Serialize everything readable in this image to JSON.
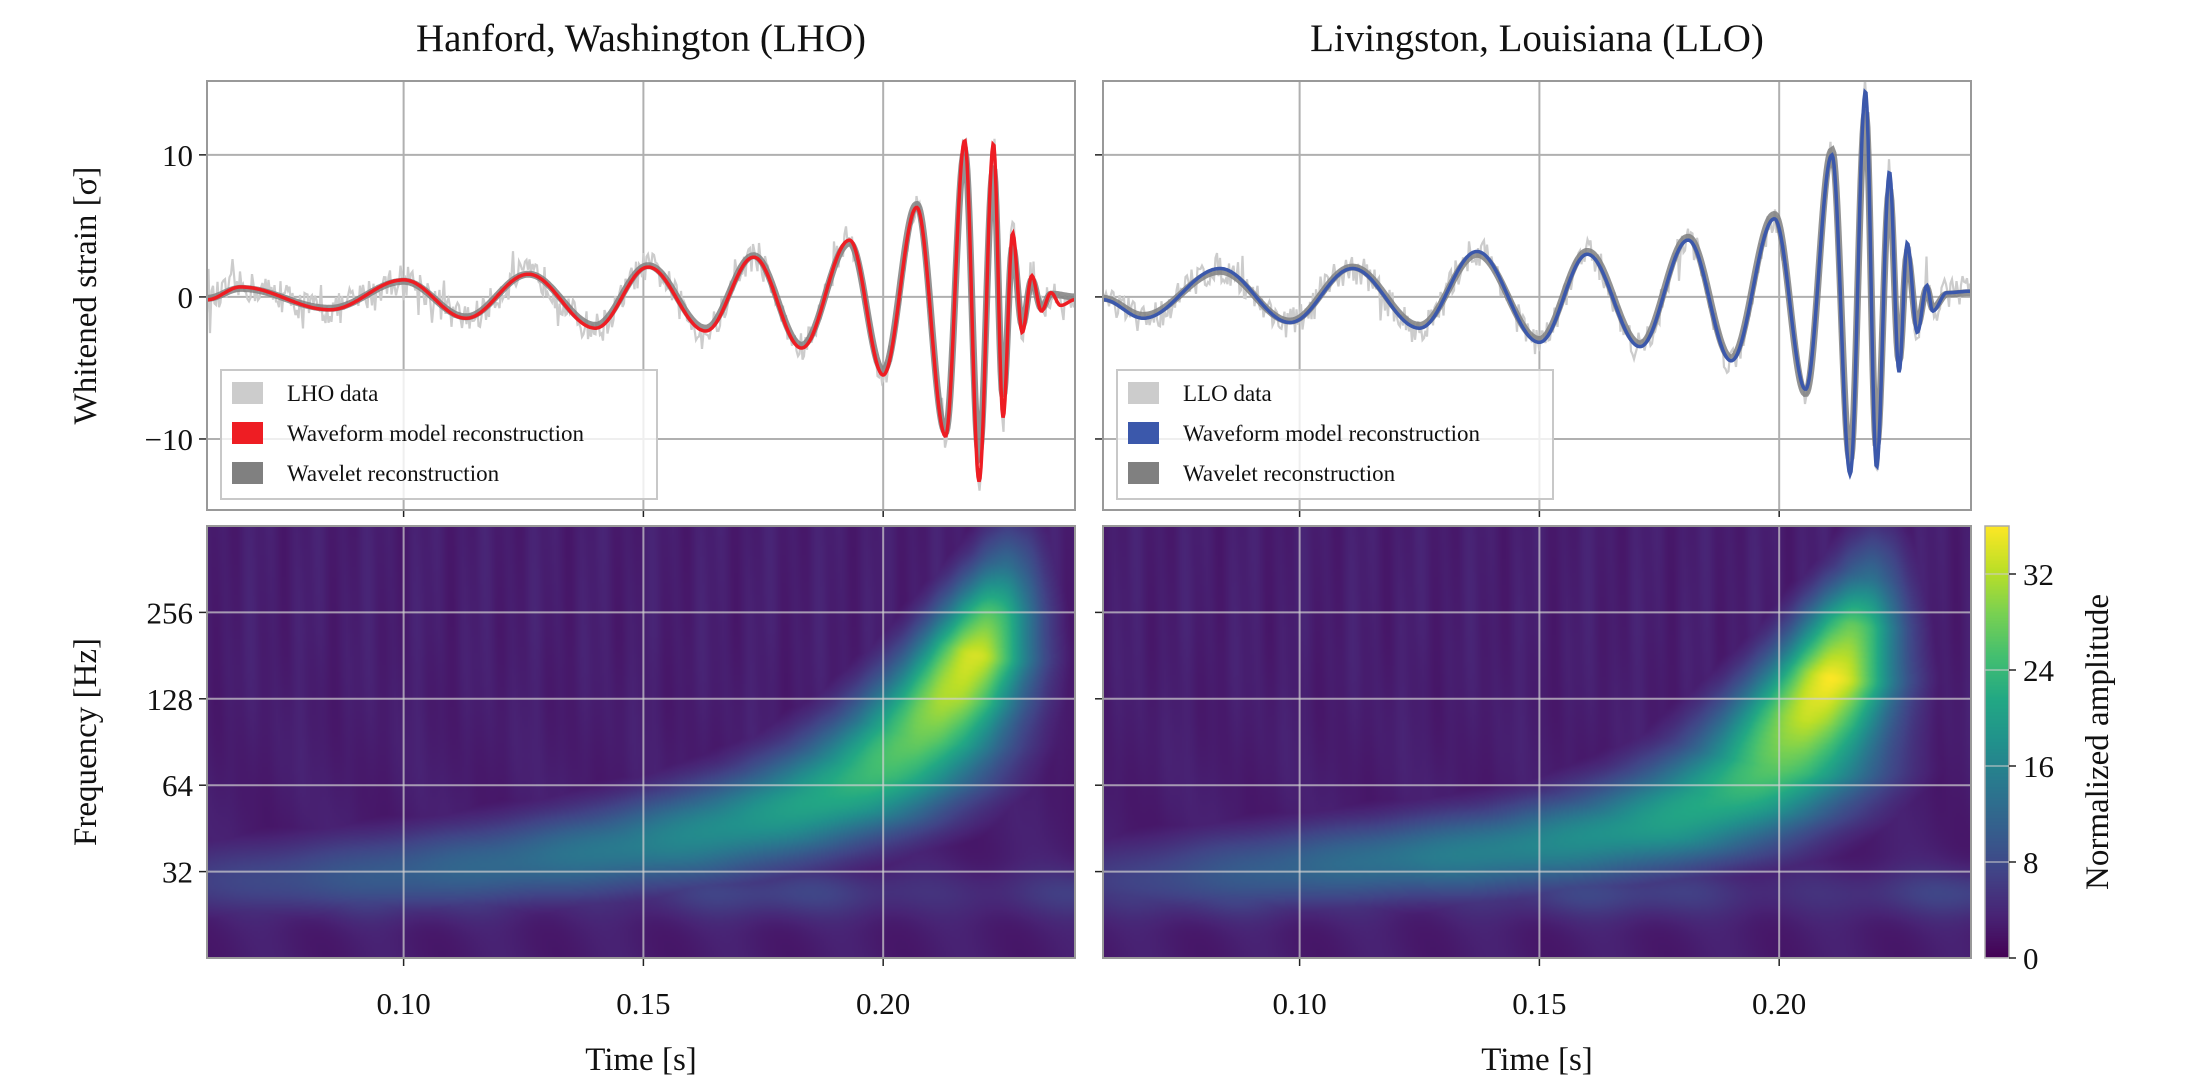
{
  "chart_data": [
    {
      "type": "line",
      "panel": "LHO",
      "title": "Hanford, Washington (LHO)",
      "ylabel": "Whitened strain [σ]",
      "xlim": [
        0.059,
        0.24
      ],
      "ylim": [
        -15,
        15.2
      ],
      "xticks": [
        0.1,
        0.15,
        0.2
      ],
      "yticks": [
        -10,
        0,
        10
      ],
      "ytick_labels": [
        "−10",
        "0",
        "10"
      ],
      "grid": true,
      "legend": "lower-left",
      "series": [
        {
          "name": "LHO data",
          "color": "#cccccc"
        },
        {
          "name": "Waveform model reconstruction",
          "color": "#ee1d23",
          "extrema": [
            [
              0.059,
              -0.2
            ],
            [
              0.066,
              0.7
            ],
            [
              0.0846,
              -0.9
            ],
            [
              0.1,
              1.2
            ],
            [
              0.113,
              -1.5
            ],
            [
              0.126,
              1.6
            ],
            [
              0.14,
              -2.2
            ],
            [
              0.151,
              2.1
            ],
            [
              0.163,
              -2.4
            ],
            [
              0.173,
              2.8
            ],
            [
              0.183,
              -3.6
            ],
            [
              0.193,
              4.0
            ],
            [
              0.2,
              -5.5
            ],
            [
              0.207,
              6.3
            ],
            [
              0.213,
              -9.8
            ],
            [
              0.217,
              11.0
            ],
            [
              0.22,
              -13.0
            ],
            [
              0.223,
              10.8
            ],
            [
              0.225,
              -8.5
            ],
            [
              0.227,
              4.5
            ],
            [
              0.229,
              -2.5
            ],
            [
              0.231,
              1.5
            ],
            [
              0.233,
              -1.0
            ],
            [
              0.235,
              0.3
            ],
            [
              0.237,
              -0.6
            ],
            [
              0.24,
              -0.2
            ]
          ]
        },
        {
          "name": "Wavelet reconstruction",
          "color": "#808080",
          "extrema": [
            [
              0.059,
              -0.1
            ],
            [
              0.066,
              0.6
            ],
            [
              0.0846,
              -0.8
            ],
            [
              0.1,
              1.1
            ],
            [
              0.113,
              -1.4
            ],
            [
              0.126,
              1.6
            ],
            [
              0.14,
              -2.0
            ],
            [
              0.151,
              2.2
            ],
            [
              0.163,
              -2.2
            ],
            [
              0.173,
              2.9
            ],
            [
              0.183,
              -3.4
            ],
            [
              0.193,
              3.8
            ],
            [
              0.2,
              -5.2
            ],
            [
              0.207,
              6.5
            ],
            [
              0.213,
              -9.5
            ],
            [
              0.217,
              10.2
            ],
            [
              0.22,
              -11.0
            ],
            [
              0.223,
              9.0
            ],
            [
              0.225,
              -7.0
            ],
            [
              0.227,
              3.5
            ],
            [
              0.229,
              -2.0
            ],
            [
              0.231,
              1.2
            ],
            [
              0.233,
              -0.8
            ],
            [
              0.235,
              0.2
            ],
            [
              0.24,
              0.0
            ]
          ]
        }
      ]
    },
    {
      "type": "line",
      "panel": "LLO",
      "title": "Livingston, Louisiana (LLO)",
      "xlim": [
        0.059,
        0.24
      ],
      "ylim": [
        -15,
        15.2
      ],
      "xticks": [
        0.1,
        0.15,
        0.2
      ],
      "yticks": [
        -10,
        0,
        10
      ],
      "grid": true,
      "legend": "lower-left",
      "series": [
        {
          "name": "LLO data",
          "color": "#cccccc"
        },
        {
          "name": "Waveform model reconstruction",
          "color": "#3b58ab",
          "extrema": [
            [
              0.059,
              -0.2
            ],
            [
              0.0674,
              -1.5
            ],
            [
              0.0834,
              2.0
            ],
            [
              0.098,
              -1.8
            ],
            [
              0.111,
              2.0
            ],
            [
              0.125,
              -2.2
            ],
            [
              0.137,
              3.2
            ],
            [
              0.15,
              -3.2
            ],
            [
              0.16,
              3.0
            ],
            [
              0.171,
              -3.5
            ],
            [
              0.181,
              4.0
            ],
            [
              0.19,
              -4.5
            ],
            [
              0.199,
              5.5
            ],
            [
              0.2055,
              -6.5
            ],
            [
              0.211,
              10.0
            ],
            [
              0.2148,
              -12.5
            ],
            [
              0.218,
              14.5
            ],
            [
              0.2203,
              -12.0
            ],
            [
              0.223,
              8.8
            ],
            [
              0.225,
              -5.3
            ],
            [
              0.2267,
              3.8
            ],
            [
              0.2288,
              -2.5
            ],
            [
              0.2308,
              0.8
            ],
            [
              0.232,
              -1.0
            ],
            [
              0.235,
              0.3
            ],
            [
              0.24,
              0.4
            ]
          ]
        },
        {
          "name": "Wavelet reconstruction",
          "color": "#808080",
          "extrema": [
            [
              0.059,
              -0.1
            ],
            [
              0.0674,
              -1.3
            ],
            [
              0.0834,
              1.8
            ],
            [
              0.098,
              -1.7
            ],
            [
              0.111,
              2.1
            ],
            [
              0.125,
              -2.0
            ],
            [
              0.137,
              3.0
            ],
            [
              0.15,
              -3.0
            ],
            [
              0.16,
              3.2
            ],
            [
              0.171,
              -3.3
            ],
            [
              0.181,
              4.2
            ],
            [
              0.19,
              -4.3
            ],
            [
              0.199,
              5.8
            ],
            [
              0.2055,
              -6.8
            ],
            [
              0.211,
              10.3
            ],
            [
              0.2148,
              -11.5
            ],
            [
              0.218,
              13.0
            ],
            [
              0.2203,
              -10.5
            ],
            [
              0.223,
              7.5
            ],
            [
              0.225,
              -4.5
            ],
            [
              0.2267,
              3.0
            ],
            [
              0.2288,
              -2.0
            ],
            [
              0.2308,
              0.6
            ],
            [
              0.232,
              -0.8
            ],
            [
              0.235,
              0.2
            ],
            [
              0.24,
              0.3
            ]
          ]
        }
      ]
    },
    {
      "type": "heatmap",
      "panel": "LHO",
      "xlabel": "Time [s]",
      "ylabel": "Frequency [Hz]",
      "xlim": [
        0.059,
        0.24
      ],
      "yscale": "log2",
      "ylim": [
        16,
        512
      ],
      "xticks": [
        0.1,
        0.15,
        0.2
      ],
      "xtick_labels": [
        "0.10",
        "0.15",
        "0.20"
      ],
      "yticks": [
        32,
        64,
        128,
        256
      ],
      "ytick_labels": [
        "32",
        "64",
        "128",
        "256"
      ],
      "grid": true,
      "track": [
        [
          0.07,
          30,
          6
        ],
        [
          0.1,
          32,
          9
        ],
        [
          0.13,
          35,
          12
        ],
        [
          0.155,
          40,
          15
        ],
        [
          0.175,
          48,
          18
        ],
        [
          0.19,
          58,
          21
        ],
        [
          0.2,
          72,
          24
        ],
        [
          0.208,
          95,
          27
        ],
        [
          0.214,
          130,
          31
        ],
        [
          0.219,
          180,
          33
        ],
        [
          0.222,
          240,
          26
        ],
        [
          0.225,
          330,
          14
        ],
        [
          0.227,
          450,
          6
        ]
      ]
    },
    {
      "type": "heatmap",
      "panel": "LLO",
      "xlabel": "Time [s]",
      "xlim": [
        0.059,
        0.24
      ],
      "yscale": "log2",
      "ylim": [
        16,
        512
      ],
      "xticks": [
        0.1,
        0.15,
        0.2
      ],
      "xtick_labels": [
        "0.10",
        "0.15",
        "0.20"
      ],
      "yticks": [
        32,
        64,
        128,
        256
      ],
      "grid": true,
      "track": [
        [
          0.07,
          30,
          5
        ],
        [
          0.1,
          33,
          10
        ],
        [
          0.13,
          36,
          14
        ],
        [
          0.155,
          40,
          16
        ],
        [
          0.175,
          46,
          19
        ],
        [
          0.19,
          58,
          22
        ],
        [
          0.2,
          75,
          26
        ],
        [
          0.206,
          110,
          32
        ],
        [
          0.211,
          150,
          35
        ],
        [
          0.215,
          220,
          27
        ],
        [
          0.218,
          300,
          14
        ],
        [
          0.22,
          420,
          6
        ]
      ]
    }
  ],
  "colorbar": {
    "label": "Normalized amplitude",
    "colormap": "viridis",
    "range": [
      0,
      36
    ],
    "ticks": [
      0,
      8,
      16,
      24,
      32
    ],
    "tick_labels": [
      "0",
      "8",
      "16",
      "24",
      "32"
    ]
  }
}
